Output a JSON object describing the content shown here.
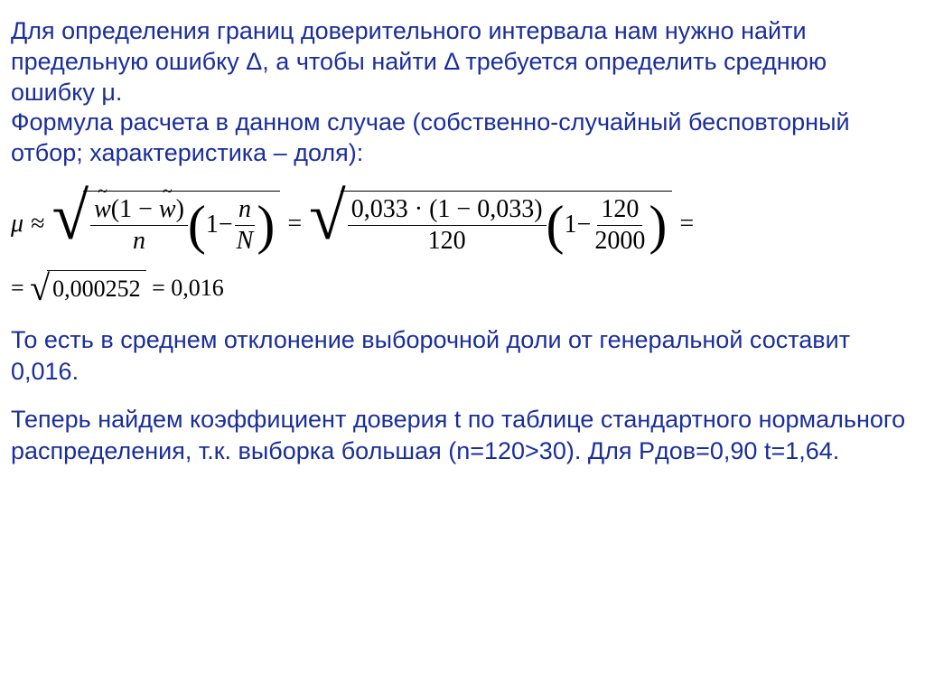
{
  "para1": "Для определения границ доверительного интервала нам нужно найти предельную ошибку Δ, а чтобы найти Δ требуется определить среднюю ошибку μ.",
  "para2": "Формула расчета в данном случае (собственно-случайный бесповторный отбор; характеристика – доля):",
  "formula": {
    "mu": "μ",
    "approx": "≈",
    "w": "w",
    "one": "1",
    "minus": "−",
    "n": "n",
    "N": "N",
    "eq": "=",
    "v1": "0,033",
    "v2": "0,033",
    "n_val": "120",
    "N_val": "2000",
    "inner": "0,000252",
    "result": "0,016"
  },
  "para3": "То есть в среднем  отклонение выборочной доли от генеральной составит 0,016.",
  "para4": "Теперь найдем коэффициент доверия t по таблице стандартного нормального распределения, т.к. выборка большая (n=120>30). Для Pдов=0,90  t=1,64."
}
